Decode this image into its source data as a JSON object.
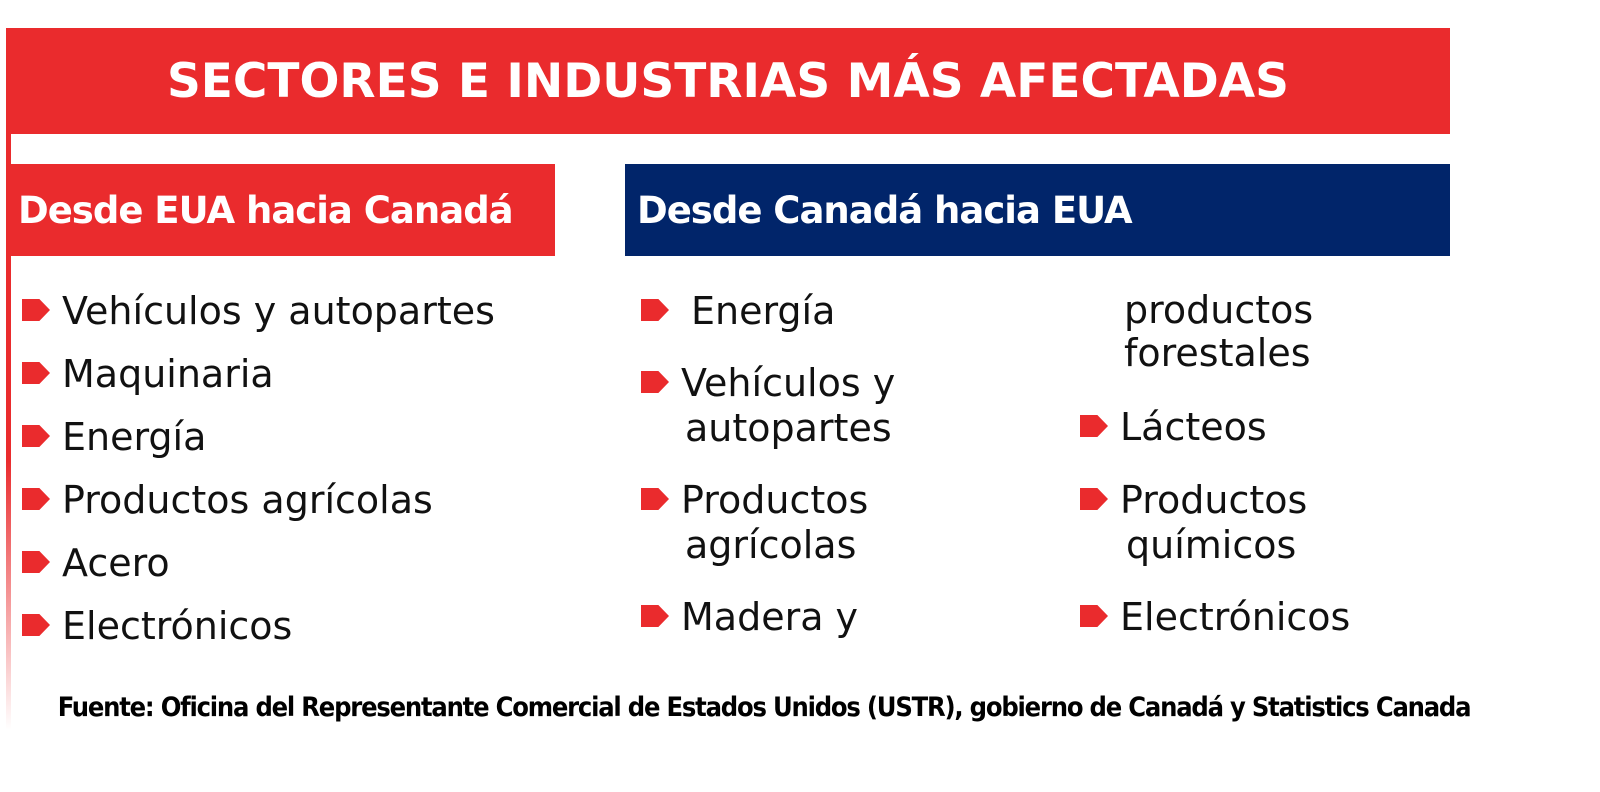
{
  "title": "SECTORES E INDUSTRIAS MÁS AFECTADAS",
  "left": {
    "heading": "Desde EUA hacia Canadá",
    "items": [
      "Vehículos y autopartes",
      "Maquinaria",
      "Energía",
      "Productos agrícolas",
      "Acero",
      "Electrónicos"
    ]
  },
  "right": {
    "heading": "Desde Canadá hacia EUA",
    "col1": [
      {
        "lines": [
          "Energía"
        ]
      },
      {
        "lines": [
          "Vehículos y",
          "autopartes"
        ]
      },
      {
        "lines": [
          "Productos",
          "agrícolas"
        ]
      },
      {
        "lines": [
          "Madera y"
        ]
      }
    ],
    "col2_continuation": [
      "productos",
      "forestales"
    ],
    "col2": [
      {
        "lines": [
          "Lácteos"
        ]
      },
      {
        "lines": [
          "Productos",
          "químicos"
        ]
      },
      {
        "lines": [
          "Electrónicos"
        ]
      }
    ]
  },
  "source": "Fuente: Oficina del Representante Comercial de Estados Unidos (USTR), gobierno de Canadá y Statistics Canada",
  "colors": {
    "red": "#ea2b2d",
    "navy": "#01256a",
    "text": "#111111"
  },
  "icons": {
    "bullet": "red-arrow-bullet-icon"
  }
}
